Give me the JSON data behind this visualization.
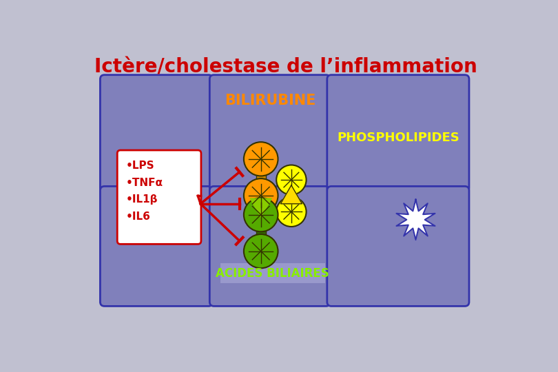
{
  "title": "Ictère/cholestase de l’inflammation",
  "title_color": "#cc0000",
  "bg_color": "#c0c0d0",
  "cell_color": "#8080bb",
  "cell_edge_color": "#3333aa",
  "fig_width": 8.1,
  "fig_height": 5.4,
  "bilirubine_text": "BILIRUBINE",
  "bilirubine_color": "#ff8800",
  "phospholipides_text": "PHOSPHOLIPIDES",
  "phospholipides_color": "#ffff00",
  "acides_text": "ACIDES BILIAIRES",
  "acides_color": "#88ee00",
  "lps_box_text": [
    "•LPS",
    "•TNFα",
    "•IL1β",
    "•IL6"
  ],
  "lps_text_color": "#cc0000",
  "lps_box_edge": "#cc0000",
  "lps_box_fill": "#ffffff",
  "arrow_color": "#cc0000",
  "orange_color": "#ff9900",
  "yellow_color": "#ffff00",
  "green_color": "#55aa00",
  "neck_orange": "#cc8800",
  "neck_yellow": "#cccc00",
  "neck_green": "#336600"
}
